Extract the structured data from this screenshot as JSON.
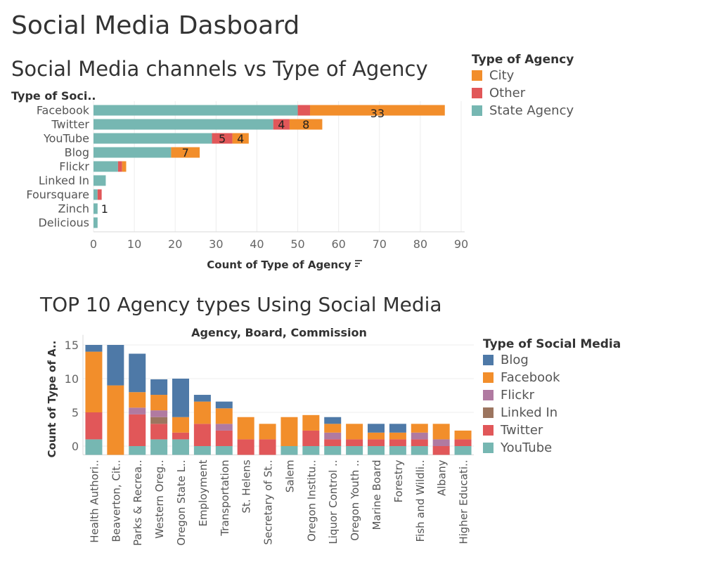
{
  "dashboard_title": "Social Media Dasboard",
  "chart_data": [
    {
      "type": "bar",
      "orientation": "horizontal",
      "stacked": true,
      "title": "Social Media channels vs Type of Agency",
      "ylabel": "Type of Soci..",
      "xlabel": "Count of Type of Agency",
      "sort_icon": "sort-descending-icon",
      "xlim": [
        0,
        90
      ],
      "xticks": [
        0,
        10,
        20,
        30,
        40,
        50,
        60,
        70,
        80,
        90
      ],
      "categories": [
        "Facebook",
        "Twitter",
        "YouTube",
        "Blog",
        "Flickr",
        "Linked In",
        "Foursquare",
        "Zinch",
        "Delicious"
      ],
      "series": [
        {
          "name": "State Agency",
          "color": "#76b7b2",
          "values": [
            50,
            44,
            29,
            19,
            6,
            3,
            1,
            1,
            1
          ]
        },
        {
          "name": "Other",
          "color": "#e15759",
          "values": [
            3,
            4,
            5,
            0,
            1,
            0,
            1,
            0,
            0
          ]
        },
        {
          "name": "City",
          "color": "#f28e2b",
          "values": [
            33,
            8,
            4,
            7,
            1,
            0,
            0,
            0,
            0
          ]
        }
      ],
      "data_labels": [
        {
          "category": "Facebook",
          "series": "City",
          "text": "33"
        },
        {
          "category": "Twitter",
          "series": "Other",
          "text": "4"
        },
        {
          "category": "Twitter",
          "series": "City",
          "text": "8"
        },
        {
          "category": "YouTube",
          "series": "Other",
          "text": "5"
        },
        {
          "category": "YouTube",
          "series": "City",
          "text": "4"
        },
        {
          "category": "Blog",
          "series": "City",
          "text": "7"
        },
        {
          "category": "Zinch",
          "series": "total",
          "text": "1"
        }
      ],
      "legend": {
        "title": "Type of Agency",
        "placement": "right",
        "items": [
          {
            "name": "City",
            "color": "#f28e2b"
          },
          {
            "name": "Other",
            "color": "#e15759"
          },
          {
            "name": "State Agency",
            "color": "#76b7b2"
          }
        ]
      },
      "grid": true
    },
    {
      "type": "bar",
      "orientation": "vertical",
      "stacked": true,
      "title": "TOP 10 Agency types Using Social Media",
      "subtitle": "Agency, Board, Commission",
      "ylabel": "Count of Type of A..",
      "ylim": [
        -1.3,
        16.5
      ],
      "yticks": [
        0,
        5,
        10,
        15
      ],
      "categories": [
        "Health Authori..",
        "Beaverton, Cit..",
        "Parks & Recrea..",
        "Western Oreg..",
        "Oregon State L..",
        "Employment",
        "Transportation",
        "St. Helens",
        "Secretary of St..",
        "Salem",
        "Oregon Institu..",
        "Liquor Control ..",
        "Oregon Youth ..",
        "Marine Board",
        "Forestry",
        "Fish and Wildli..",
        "Albany",
        "Higher Educati.."
      ],
      "series": [
        {
          "name": "YouTube",
          "color": "#76b7b2",
          "values": [
            2.3,
            0,
            1.3,
            2.3,
            2.3,
            1.3,
            1.3,
            0,
            0,
            1.3,
            1.3,
            1.3,
            1.3,
            1.3,
            1.3,
            1.3,
            0,
            1.3
          ]
        },
        {
          "name": "Twitter",
          "color": "#e15759",
          "values": [
            4,
            0,
            4.7,
            2.3,
            1,
            3.3,
            2.3,
            2.3,
            2.3,
            0,
            2.3,
            1,
            1,
            1,
            1,
            1,
            1.3,
            1
          ]
        },
        {
          "name": "Linked In",
          "color": "#9c755f",
          "values": [
            0,
            0,
            0,
            1,
            0,
            0,
            0,
            0,
            0,
            0,
            0,
            0,
            0,
            0,
            0,
            0,
            0,
            0
          ]
        },
        {
          "name": "Flickr",
          "color": "#b07aa1",
          "values": [
            0,
            0,
            1,
            1,
            0,
            0,
            1,
            0,
            0,
            0,
            0,
            1,
            0,
            0,
            0,
            1,
            1,
            0
          ]
        },
        {
          "name": "Facebook",
          "color": "#f28e2b",
          "values": [
            9,
            10.3,
            2.3,
            2.3,
            2.3,
            3.3,
            2.3,
            3.3,
            2.3,
            4.3,
            2.3,
            1.3,
            2.3,
            1,
            1,
            1.3,
            2.3,
            1.3
          ]
        },
        {
          "name": "Blog",
          "color": "#4e79a7",
          "values": [
            1,
            6,
            5.7,
            2.3,
            5.7,
            1,
            1,
            0,
            0,
            0,
            0,
            1,
            0,
            1.3,
            1.3,
            0,
            0,
            0
          ]
        }
      ],
      "legend": {
        "title": "Type of Social Media",
        "placement": "right",
        "items": [
          {
            "name": "Blog",
            "color": "#4e79a7"
          },
          {
            "name": "Facebook",
            "color": "#f28e2b"
          },
          {
            "name": "Flickr",
            "color": "#b07aa1"
          },
          {
            "name": "Linked In",
            "color": "#9c755f"
          },
          {
            "name": "Twitter",
            "color": "#e15759"
          },
          {
            "name": "YouTube",
            "color": "#76b7b2"
          }
        ]
      },
      "grid": true
    }
  ]
}
